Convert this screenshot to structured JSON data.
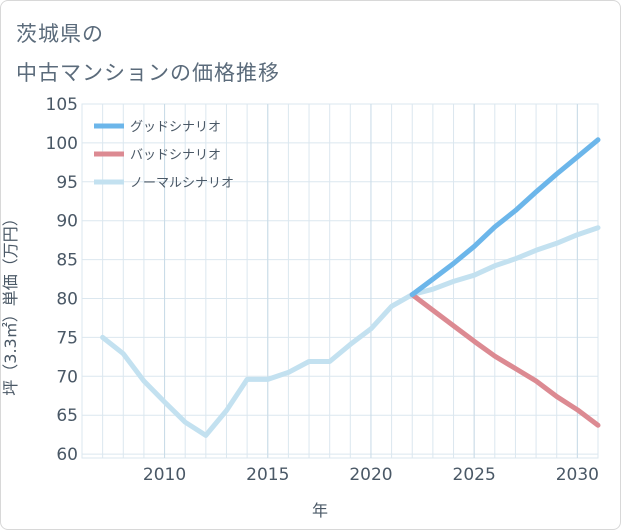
{
  "title_lines": [
    "茨城県の",
    "中古マンションの価格推移"
  ],
  "chart_data": {
    "type": "line",
    "title": "茨城県の中古マンションの価格推移",
    "xlabel": "年",
    "ylabel": "坪（3.3㎡）単価（万円）",
    "xlim": [
      2006,
      2031
    ],
    "ylim": [
      59.5,
      105
    ],
    "x_ticks": [
      2010,
      2015,
      2020,
      2025,
      2030
    ],
    "y_ticks": [
      60,
      65,
      70,
      75,
      80,
      85,
      90,
      95,
      100,
      105
    ],
    "grid": true,
    "legend_position": "top-left",
    "series": [
      {
        "name": "グッドシナリオ",
        "color": "#6cb6ea",
        "x": [
          2022,
          2023,
          2024,
          2025,
          2026,
          2027,
          2028,
          2029,
          2030,
          2031
        ],
        "y": [
          80.5,
          82.5,
          84.5,
          86.7,
          89.2,
          91.3,
          93.7,
          96.0,
          98.2,
          100.4
        ]
      },
      {
        "name": "バッドシナリオ",
        "color": "#dc8a92",
        "x": [
          2022,
          2023,
          2024,
          2025,
          2026,
          2027,
          2028,
          2029,
          2030,
          2031
        ],
        "y": [
          80.5,
          78.5,
          76.5,
          74.5,
          72.6,
          71.0,
          69.4,
          67.4,
          65.7,
          63.7
        ]
      },
      {
        "name": "ノーマルシナリオ",
        "color": "#c3e1f0",
        "x": [
          2007,
          2008,
          2009,
          2010,
          2011,
          2012,
          2013,
          2014,
          2015,
          2016,
          2017,
          2018,
          2019,
          2020,
          2021,
          2022,
          2023,
          2024,
          2025,
          2026,
          2027,
          2028,
          2029,
          2030,
          2031
        ],
        "y": [
          75.0,
          72.9,
          69.4,
          66.7,
          64.1,
          62.4,
          65.6,
          69.6,
          69.6,
          70.5,
          71.9,
          71.9,
          74.1,
          76.1,
          79.0,
          80.5,
          81.2,
          82.2,
          83.0,
          84.2,
          85.1,
          86.2,
          87.1,
          88.2,
          89.1
        ]
      }
    ]
  }
}
